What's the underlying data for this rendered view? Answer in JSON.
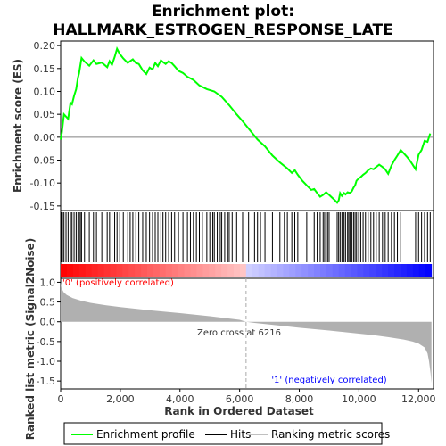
{
  "chart_data": [
    {
      "type": "line",
      "title_line1": "Enrichment plot:",
      "title_line2": "HALLMARK_ESTROGEN_RESPONSE_LATE",
      "ylabel": "Enrichment score (ES)",
      "xlim": [
        0,
        12500
      ],
      "ylim": [
        -0.16,
        0.21
      ],
      "yticks": [
        -0.15,
        -0.1,
        -0.05,
        0.0,
        0.05,
        0.1,
        0.15,
        0.2
      ],
      "ytick_labels": [
        "-0.15",
        "-0.10",
        "-0.05",
        "0.00",
        "0.05",
        "0.10",
        "0.15",
        "0.20"
      ],
      "series": [
        {
          "name": "Enrichment profile",
          "color": "#00ff00",
          "x": [
            0,
            40,
            110,
            250,
            330,
            380,
            450,
            520,
            580,
            620,
            700,
            800,
            960,
            1100,
            1200,
            1380,
            1560,
            1640,
            1720,
            1810,
            1890,
            1980,
            2100,
            2250,
            2330,
            2420,
            2520,
            2620,
            2750,
            2870,
            2980,
            3080,
            3170,
            3260,
            3360,
            3430,
            3520,
            3620,
            3720,
            3820,
            3950,
            4100,
            4250,
            4450,
            4650,
            4900,
            5150,
            5400,
            5650,
            5900,
            6100,
            6350,
            6600,
            6850,
            7100,
            7350,
            7600,
            7750,
            7850,
            7950,
            8100,
            8250,
            8400,
            8500,
            8600,
            8700,
            8800,
            8900,
            9000,
            9100,
            9200,
            9270,
            9320,
            9370,
            9430,
            9500,
            9550,
            9620,
            9700,
            9760,
            9820,
            9870,
            9920,
            9990,
            10060,
            10140,
            10220,
            10310,
            10400,
            10490,
            10580,
            10680,
            10790,
            10880,
            10980,
            11090,
            11190,
            11290,
            11400,
            11500,
            11600,
            11700,
            11800,
            11900,
            12000,
            12100,
            12200,
            12300,
            12390
          ],
          "y": [
            -0.005,
            0.01,
            0.05,
            0.04,
            0.075,
            0.072,
            0.09,
            0.105,
            0.13,
            0.14,
            0.173,
            0.165,
            0.156,
            0.168,
            0.16,
            0.163,
            0.153,
            0.166,
            0.158,
            0.175,
            0.193,
            0.182,
            0.172,
            0.162,
            0.166,
            0.17,
            0.162,
            0.16,
            0.146,
            0.138,
            0.152,
            0.148,
            0.162,
            0.155,
            0.168,
            0.164,
            0.16,
            0.166,
            0.162,
            0.155,
            0.145,
            0.14,
            0.132,
            0.125,
            0.113,
            0.105,
            0.1,
            0.088,
            0.07,
            0.05,
            0.035,
            0.015,
            -0.005,
            -0.02,
            -0.04,
            -0.055,
            -0.068,
            -0.078,
            -0.072,
            -0.082,
            -0.095,
            -0.105,
            -0.115,
            -0.113,
            -0.122,
            -0.13,
            -0.126,
            -0.12,
            -0.126,
            -0.132,
            -0.138,
            -0.143,
            -0.138,
            -0.122,
            -0.128,
            -0.122,
            -0.125,
            -0.12,
            -0.122,
            -0.118,
            -0.11,
            -0.105,
            -0.095,
            -0.09,
            -0.087,
            -0.082,
            -0.078,
            -0.072,
            -0.068,
            -0.07,
            -0.065,
            -0.06,
            -0.065,
            -0.07,
            -0.08,
            -0.062,
            -0.05,
            -0.04,
            -0.028,
            -0.035,
            -0.042,
            -0.05,
            -0.06,
            -0.07,
            -0.038,
            -0.028,
            -0.008,
            -0.01,
            0.008
          ]
        }
      ]
    },
    {
      "type": "hits",
      "xlim": [
        0,
        12500
      ],
      "series": [
        {
          "name": "Hits",
          "color": "#000000",
          "x": [
            30,
            60,
            110,
            180,
            250,
            330,
            380,
            450,
            520,
            580,
            620,
            660,
            700,
            800,
            960,
            1100,
            1200,
            1380,
            1560,
            1640,
            1720,
            1810,
            1890,
            1980,
            2100,
            2250,
            2330,
            2420,
            2520,
            2620,
            2750,
            2870,
            2980,
            3080,
            3170,
            3260,
            3360,
            3430,
            3520,
            3620,
            3720,
            3820,
            3950,
            4100,
            4250,
            4350,
            4450,
            4550,
            4650,
            4750,
            4900,
            5000,
            5100,
            5150,
            5250,
            5350,
            5400,
            5500,
            5600,
            5650,
            5750,
            5900,
            6100,
            6300,
            6500,
            6600,
            6700,
            6850,
            7100,
            7350,
            7500,
            7600,
            7750,
            7850,
            7950,
            8250,
            8500,
            8600,
            8700,
            8800,
            8850,
            8900,
            8950,
            9000,
            9270,
            9320,
            9370,
            9430,
            9500,
            9550,
            9620,
            9660,
            9700,
            9760,
            9820,
            9870,
            9920,
            9990,
            10060,
            10140,
            10220,
            10310,
            10400,
            10490,
            10580,
            10680,
            10790,
            10880,
            10980,
            11090,
            11190,
            11290,
            11400,
            11900,
            12000,
            12100,
            12200,
            12300,
            12390
          ]
        }
      ]
    },
    {
      "type": "area",
      "ylabel": "Ranked list metric (Signal2Noise)",
      "xlabel": "Rank in Ordered Dataset",
      "xlim": [
        0,
        12500
      ],
      "ylim": [
        -1.7,
        1.1
      ],
      "yticks": [
        -1.5,
        -1.0,
        -0.5,
        0.0,
        0.5,
        1.0
      ],
      "ytick_labels": [
        "-1.5",
        "-1.0",
        "-0.5",
        "0.0",
        "0.5",
        "1.0"
      ],
      "xticks": [
        0,
        2000,
        4000,
        6000,
        8000,
        10000,
        12000
      ],
      "xtick_labels": [
        "0",
        "2,000",
        "4,000",
        "6,000",
        "8,000",
        "10,000",
        "12,000"
      ],
      "series": [
        {
          "name": "Ranking metric scores",
          "color": "#b0b0b0",
          "x": [
            0,
            30,
            100,
            200,
            400,
            700,
            1000,
            1500,
            2000,
            3000,
            4000,
            5000,
            6000,
            6216,
            6500,
            7000,
            8000,
            9000,
            10000,
            10500,
            11000,
            11500,
            11800,
            12000,
            12200,
            12300,
            12350,
            12400,
            12430
          ],
          "y": [
            1.0,
            0.85,
            0.75,
            0.68,
            0.6,
            0.53,
            0.48,
            0.42,
            0.37,
            0.29,
            0.22,
            0.14,
            0.05,
            0.0,
            -0.03,
            -0.07,
            -0.15,
            -0.22,
            -0.3,
            -0.34,
            -0.39,
            -0.45,
            -0.5,
            -0.55,
            -0.65,
            -0.8,
            -1.0,
            -1.3,
            -1.55
          ]
        }
      ],
      "zero_cross_label": "Zero cross at 6216",
      "zero_cross_rank": 6216,
      "pos_label": "'0' (positively correlated)",
      "neg_label": "'1' (negatively correlated)",
      "pos_color": "#ff0000",
      "neg_color": "#0000ff"
    }
  ],
  "legend": {
    "items": [
      {
        "label": "Enrichment profile",
        "color": "#00ff00"
      },
      {
        "label": "Hits",
        "color": "#000000"
      },
      {
        "label": "Ranking metric scores",
        "color": "#c0c0c0"
      }
    ]
  }
}
